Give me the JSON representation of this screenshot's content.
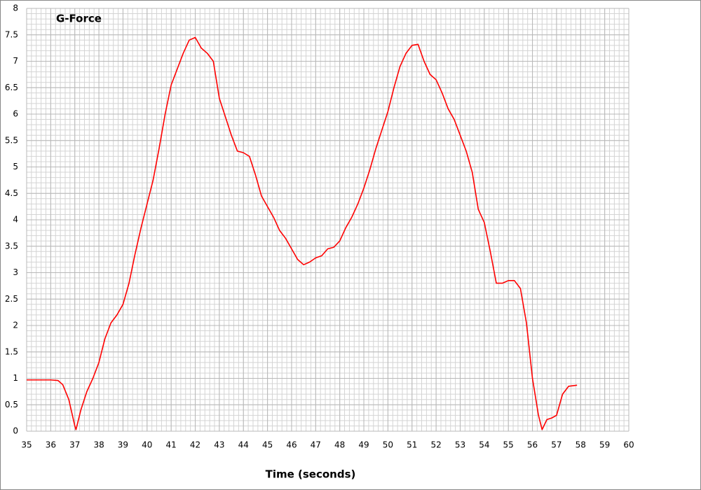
{
  "chart_data": {
    "type": "line",
    "title": "G-Force",
    "x_label": "Time (seconds)",
    "color": "#ff0000",
    "grid": true,
    "xminor": 0.2,
    "yminor": 0.1,
    "xlim": [
      35,
      60
    ],
    "ylim": [
      0,
      8
    ],
    "xticks": [
      35,
      36,
      37,
      38,
      39,
      40,
      41,
      42,
      43,
      44,
      45,
      46,
      47,
      48,
      49,
      50,
      51,
      52,
      53,
      54,
      55,
      56,
      57,
      58,
      59,
      60
    ],
    "yticks": [
      0,
      0.5,
      1,
      1.5,
      2,
      2.5,
      3,
      3.5,
      4,
      4.5,
      5,
      5.5,
      6,
      6.5,
      7,
      7.5,
      8
    ],
    "x": [
      35,
      35.5,
      36,
      36.3,
      36.5,
      36.75,
      37,
      37.05,
      37.25,
      37.5,
      37.75,
      38,
      38.25,
      38.5,
      38.75,
      39,
      39.25,
      39.5,
      39.75,
      40,
      40.25,
      40.5,
      40.75,
      41,
      41.25,
      41.5,
      41.75,
      42,
      42.25,
      42.5,
      42.75,
      43,
      43.25,
      43.5,
      43.75,
      44,
      44.25,
      44.5,
      44.75,
      45,
      45.25,
      45.5,
      45.75,
      46,
      46.25,
      46.5,
      46.75,
      47,
      47.25,
      47.5,
      47.75,
      48,
      48.25,
      48.5,
      48.75,
      49,
      49.25,
      49.5,
      49.75,
      50,
      50.25,
      50.5,
      50.75,
      51,
      51.25,
      51.5,
      51.75,
      52,
      52.25,
      52.5,
      52.75,
      53,
      53.25,
      53.5,
      53.75,
      54,
      54.25,
      54.5,
      54.75,
      55,
      55.25,
      55.5,
      55.75,
      56,
      56.25,
      56.4,
      56.6,
      56.8,
      57,
      57.25,
      57.5,
      57.85
    ],
    "values": [
      0.97,
      0.97,
      0.97,
      0.96,
      0.88,
      0.6,
      0.1,
      0.03,
      0.4,
      0.75,
      1.0,
      1.3,
      1.75,
      2.05,
      2.2,
      2.4,
      2.8,
      3.35,
      3.85,
      4.3,
      4.75,
      5.35,
      6.0,
      6.55,
      6.85,
      7.15,
      7.4,
      7.45,
      7.25,
      7.15,
      7.0,
      6.3,
      5.95,
      5.6,
      5.3,
      5.27,
      5.2,
      4.85,
      4.45,
      4.25,
      4.05,
      3.8,
      3.65,
      3.45,
      3.25,
      3.15,
      3.2,
      3.28,
      3.32,
      3.45,
      3.48,
      3.6,
      3.85,
      4.05,
      4.3,
      4.6,
      4.95,
      5.35,
      5.7,
      6.05,
      6.5,
      6.9,
      7.15,
      7.3,
      7.32,
      7.0,
      6.75,
      6.65,
      6.4,
      6.1,
      5.9,
      5.6,
      5.3,
      4.9,
      4.2,
      3.95,
      3.4,
      2.8,
      2.8,
      2.85,
      2.85,
      2.7,
      2.05,
      1.0,
      0.3,
      0.03,
      0.22,
      0.25,
      0.3,
      0.7,
      0.85,
      0.87
    ]
  }
}
